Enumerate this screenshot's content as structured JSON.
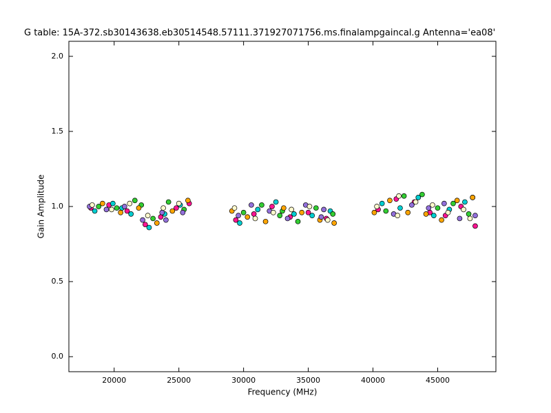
{
  "chart_data": {
    "type": "scatter",
    "title": "G table: 15A-372.sb30143638.eb30514548.57111.371927071756.ms.finalampgaincal.g      Antenna='ea08'",
    "x_label": "Frequency (MHz)",
    "y_label": "Gain Amplitude",
    "xlim": [
      16500,
      49500
    ],
    "xticks": [
      20000,
      25000,
      30000,
      35000,
      40000,
      45000
    ],
    "ylim": [
      -0.1,
      2.1
    ],
    "yticks": [
      {
        "value": 0,
        "label": "0.0"
      },
      {
        "value": 0.5,
        "label": "0.5"
      },
      {
        "value": 1,
        "label": "1.0"
      },
      {
        "value": 1.5,
        "label": "1.5"
      },
      {
        "value": 2,
        "label": "2.0"
      }
    ],
    "grid": false,
    "series": [
      {
        "color": "#ff1493",
        "x": [
          18200,
          19600,
          21000,
          22400,
          23600,
          24800,
          25800,
          29400,
          30800,
          32200,
          33600,
          35000,
          36400,
          40400,
          41800,
          43200,
          44400,
          45600,
          46800,
          47900
        ],
        "values": [
          0.99,
          1.01,
          0.97,
          0.88,
          0.93,
          0.99,
          1.02,
          0.91,
          0.95,
          1.0,
          0.93,
          0.96,
          0.92,
          0.98,
          1.05,
          1.03,
          0.96,
          0.94,
          1.0,
          0.87
        ]
      },
      {
        "color": "#00ced1",
        "x": [
          18500,
          19900,
          21300,
          22700,
          23900,
          25100,
          29700,
          31100,
          32500,
          33900,
          35300,
          36700,
          40700,
          42100,
          43500,
          44700,
          45900,
          47100,
          47700,
          20600
        ],
        "values": [
          0.97,
          1.02,
          0.95,
          0.86,
          0.95,
          1.01,
          0.89,
          0.98,
          1.03,
          0.95,
          0.94,
          0.97,
          1.02,
          0.99,
          1.06,
          0.94,
          0.98,
          1.03,
          1.06,
          0.99
        ]
      },
      {
        "color": "#32cd32",
        "x": [
          18800,
          20200,
          21600,
          23000,
          24200,
          25400,
          30000,
          31400,
          32800,
          34200,
          35600,
          36900,
          41000,
          42400,
          43800,
          45000,
          46200,
          47400,
          22100,
          33000
        ],
        "values": [
          1.0,
          0.99,
          1.04,
          0.92,
          1.03,
          0.98,
          0.96,
          1.01,
          0.94,
          0.9,
          0.99,
          0.95,
          0.97,
          1.07,
          1.08,
          0.99,
          1.02,
          0.95,
          1.01,
          0.97
        ]
      },
      {
        "color": "#ffa500",
        "x": [
          19100,
          20500,
          21900,
          23300,
          24500,
          25700,
          30300,
          31700,
          33100,
          34500,
          35900,
          37000,
          41300,
          42700,
          44100,
          45300,
          46500,
          47700,
          29100,
          40100
        ],
        "values": [
          1.02,
          0.96,
          0.99,
          0.89,
          0.97,
          1.04,
          0.93,
          0.9,
          0.99,
          0.96,
          0.91,
          0.89,
          1.04,
          0.96,
          0.95,
          0.91,
          1.04,
          1.06,
          0.97,
          0.96
        ]
      },
      {
        "color": "#9370db",
        "x": [
          19400,
          20800,
          22200,
          23700,
          24000,
          25300,
          30600,
          32000,
          33400,
          34800,
          36200,
          29600,
          41600,
          43000,
          44300,
          45500,
          46700,
          47900,
          18100,
          36000
        ],
        "values": [
          0.98,
          1.0,
          0.91,
          0.96,
          0.91,
          0.96,
          1.01,
          0.97,
          0.92,
          1.01,
          0.98,
          0.94,
          0.95,
          1.01,
          0.99,
          1.02,
          0.92,
          0.94,
          1.0,
          0.93
        ]
      },
      {
        "color": "#fffacd",
        "x": [
          18300,
          19800,
          21200,
          22600,
          23800,
          25000,
          29300,
          30900,
          32300,
          33700,
          35100,
          36500,
          40300,
          41900,
          43300,
          44600,
          45800,
          47000,
          47500,
          42000
        ],
        "values": [
          1.01,
          0.98,
          1.02,
          0.94,
          0.99,
          1.02,
          0.99,
          0.92,
          0.96,
          0.98,
          1.0,
          0.91,
          1.0,
          0.94,
          1.03,
          1.01,
          0.96,
          0.98,
          0.92,
          1.07
        ]
      }
    ]
  }
}
